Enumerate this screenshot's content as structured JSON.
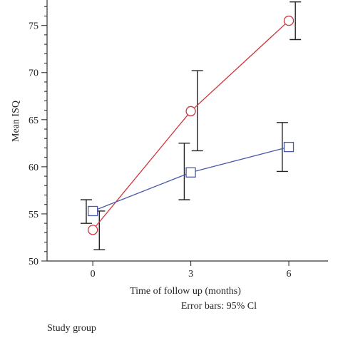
{
  "chart_data": {
    "type": "line",
    "xlabel": "Time of follow up (months)",
    "ylabel": "Mean ISQ",
    "note": "Error bars: 95% Cl",
    "legend_title": "Study group",
    "x": [
      0,
      3,
      6
    ],
    "x_tick_labels": [
      "0",
      "3",
      "6"
    ],
    "xlim": [
      -1.4,
      7.2
    ],
    "ylim": [
      50,
      77.7
    ],
    "y_ticks": [
      50,
      55,
      60,
      65,
      70,
      75
    ],
    "y_minor_step": 1,
    "grid": false,
    "series": [
      {
        "color": "#d0343a",
        "marker": "circle",
        "values": [
          53.3,
          65.9,
          75.5
        ],
        "ci_lower": [
          51.2,
          61.7,
          73.5
        ],
        "ci_upper": [
          55.3,
          70.2,
          77.5
        ],
        "errorbar_offset": 0.2
      },
      {
        "color": "#4a5aa8",
        "marker": "square",
        "values": [
          55.3,
          59.4,
          62.1
        ],
        "ci_lower": [
          54.0,
          56.5,
          59.5
        ],
        "ci_upper": [
          56.5,
          62.5,
          64.7
        ],
        "errorbar_offset": -0.2
      }
    ]
  }
}
